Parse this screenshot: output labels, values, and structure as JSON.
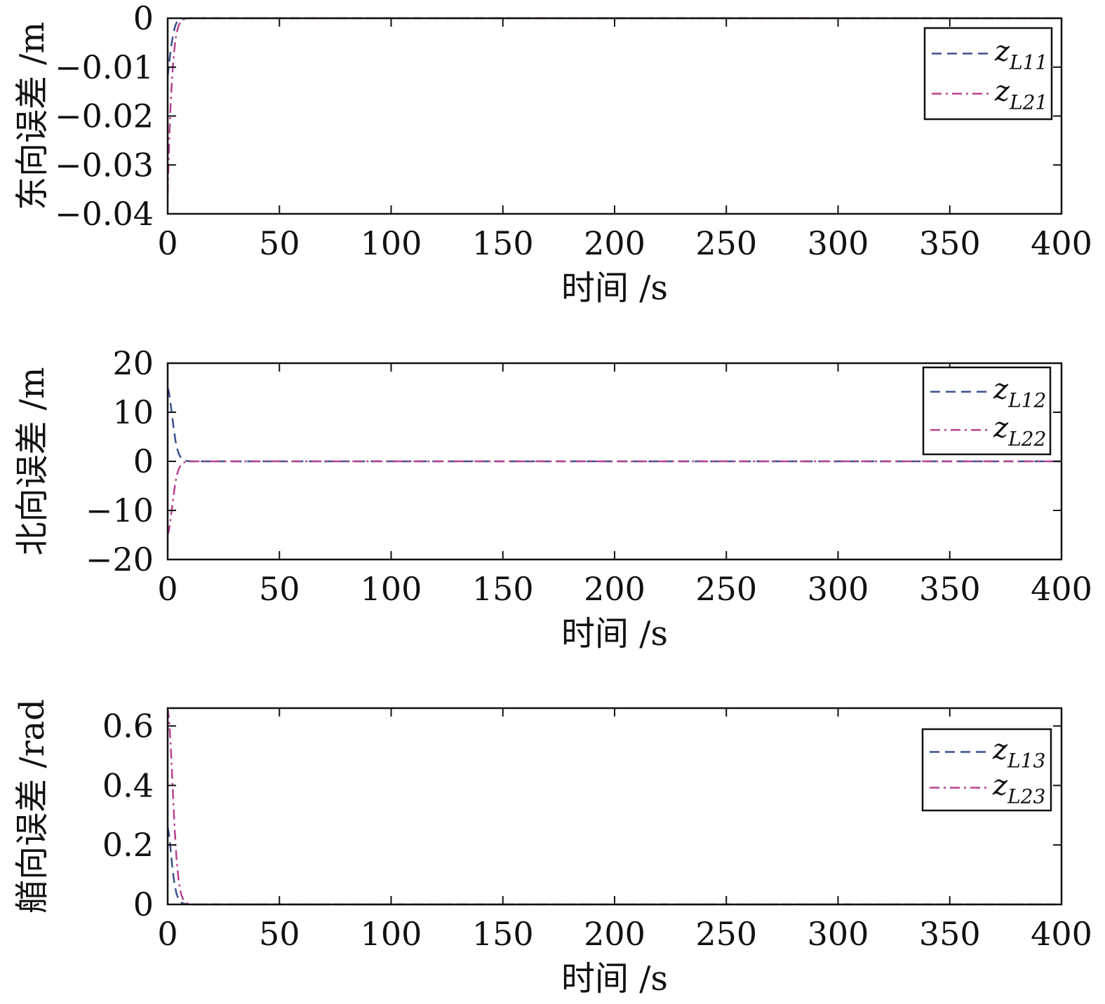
{
  "chart_data": [
    {
      "type": "line",
      "xlabel": "时间 /s",
      "ylabel": "东向误差 /m",
      "xlim": [
        0,
        400
      ],
      "ylim": [
        -0.04,
        0
      ],
      "xticks": [
        0,
        50,
        100,
        150,
        200,
        250,
        300,
        350,
        400
      ],
      "xtick_labels": [
        "0",
        "50",
        "100",
        "150",
        "200",
        "250",
        "300",
        "350",
        "400"
      ],
      "yticks": [
        0,
        -0.01,
        -0.02,
        -0.03,
        -0.04
      ],
      "ytick_labels": [
        "0",
        "−0.01",
        "−0.02",
        "−0.03",
        "−0.04"
      ],
      "grid": false,
      "legend": "top-right",
      "series": [
        {
          "name": "z_L11",
          "legend_main": "z",
          "legend_sub": "L11",
          "style": "dashed",
          "color": "#3b4f8c",
          "x": [
            0,
            0.5,
            1,
            1.5,
            2,
            2.5,
            3,
            3.5,
            4,
            5,
            6,
            7,
            8,
            10,
            20,
            50,
            100,
            200,
            300,
            400
          ],
          "y": [
            -0.012,
            -0.0098,
            -0.0078,
            -0.006,
            -0.0045,
            -0.0032,
            -0.0022,
            -0.0014,
            -0.0009,
            -0.0004,
            -0.0002,
            -8e-05,
            -3e-05,
            0,
            0,
            0,
            0,
            0,
            0,
            0
          ]
        },
        {
          "name": "z_L21",
          "legend_main": "z",
          "legend_sub": "L21",
          "style": "dashdot",
          "color": "#b8428f",
          "x": [
            0,
            0.5,
            1,
            1.5,
            2,
            2.5,
            3,
            3.5,
            4,
            5,
            6,
            7,
            8,
            10,
            20,
            50,
            100,
            200,
            300,
            400
          ],
          "y": [
            -0.036,
            -0.028,
            -0.021,
            -0.016,
            -0.012,
            -0.0088,
            -0.0063,
            -0.0044,
            -0.003,
            -0.0014,
            -0.0006,
            -0.00025,
            -0.0001,
            0,
            0,
            0,
            0,
            0,
            0,
            0
          ]
        }
      ]
    },
    {
      "type": "line",
      "xlabel": "时间 /s",
      "ylabel": "北向误差 /m",
      "xlim": [
        0,
        400
      ],
      "ylim": [
        -20,
        20
      ],
      "xticks": [
        0,
        50,
        100,
        150,
        200,
        250,
        300,
        350,
        400
      ],
      "xtick_labels": [
        "0",
        "50",
        "100",
        "150",
        "200",
        "250",
        "300",
        "350",
        "400"
      ],
      "yticks": [
        20,
        10,
        0,
        -10,
        -20
      ],
      "ytick_labels": [
        "20",
        "10",
        "0",
        "−10",
        "−20"
      ],
      "grid": false,
      "legend": "top-right",
      "series": [
        {
          "name": "z_L12",
          "legend_main": "z",
          "legend_sub": "L12",
          "style": "dashed",
          "color": "#3b4f8c",
          "x": [
            0,
            0.5,
            1,
            1.5,
            2,
            2.5,
            3,
            3.5,
            4,
            5,
            6,
            7,
            8,
            10,
            20,
            50,
            100,
            200,
            300,
            400
          ],
          "y": [
            15,
            14.2,
            12.8,
            11,
            9.2,
            7.4,
            5.7,
            4.2,
            3.0,
            1.5,
            0.7,
            0.3,
            0.12,
            0,
            0,
            0,
            0,
            0,
            0,
            0
          ]
        },
        {
          "name": "z_L22",
          "legend_main": "z",
          "legend_sub": "L22",
          "style": "dashdot",
          "color": "#b8428f",
          "x": [
            0,
            0.5,
            1,
            1.5,
            2,
            2.5,
            3,
            3.5,
            4,
            5,
            6,
            7,
            8,
            10,
            20,
            50,
            100,
            200,
            300,
            400
          ],
          "y": [
            -15,
            -14.2,
            -12.8,
            -11,
            -9.2,
            -7.4,
            -5.7,
            -4.2,
            -3.0,
            -1.5,
            -0.7,
            -0.3,
            -0.12,
            0,
            0,
            0,
            0,
            0,
            0,
            0
          ]
        }
      ]
    },
    {
      "type": "line",
      "xlabel": "时间 /s",
      "ylabel": "艏向误差 /rad",
      "xlim": [
        0,
        400
      ],
      "ylim": [
        0,
        0.66
      ],
      "xticks": [
        0,
        50,
        100,
        150,
        200,
        250,
        300,
        350,
        400
      ],
      "xtick_labels": [
        "0",
        "50",
        "100",
        "150",
        "200",
        "250",
        "300",
        "350",
        "400"
      ],
      "yticks": [
        0.6,
        0.4,
        0.2,
        0
      ],
      "ytick_labels": [
        "0.6",
        "0.4",
        "0.2",
        "0"
      ],
      "grid": false,
      "legend": "top-right",
      "series": [
        {
          "name": "z_L13",
          "legend_main": "z",
          "legend_sub": "L13",
          "style": "dashed",
          "color": "#3b4f8c",
          "x": [
            0,
            0.5,
            1,
            1.5,
            2,
            3,
            4,
            5,
            6,
            7,
            8,
            10,
            20,
            50,
            100,
            200,
            300,
            400
          ],
          "y": [
            0.26,
            0.24,
            0.21,
            0.17,
            0.13,
            0.07,
            0.035,
            0.016,
            0.007,
            0.003,
            0.001,
            0,
            0,
            0,
            0,
            0,
            0,
            0
          ]
        },
        {
          "name": "z_L23",
          "legend_main": "z",
          "legend_sub": "L23",
          "style": "dashdot",
          "color": "#b8428f",
          "x": [
            0,
            0.5,
            1,
            1.5,
            2,
            3,
            4,
            5,
            6,
            7,
            8,
            10,
            20,
            50,
            100,
            200,
            300,
            400
          ],
          "y": [
            0.66,
            0.63,
            0.58,
            0.51,
            0.43,
            0.27,
            0.15,
            0.075,
            0.035,
            0.015,
            0.006,
            0,
            0,
            0,
            0,
            0,
            0,
            0
          ]
        }
      ]
    }
  ]
}
